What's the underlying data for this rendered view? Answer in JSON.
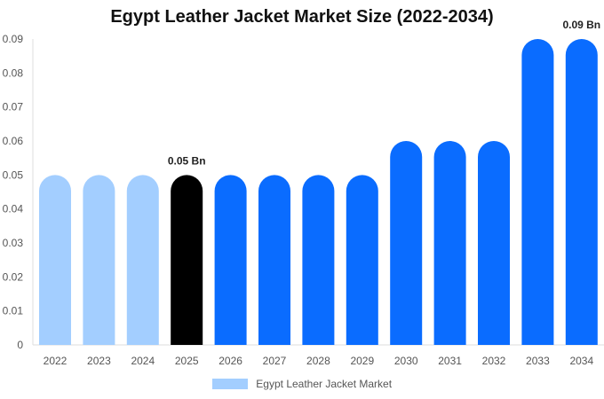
{
  "chart_data": {
    "type": "bar",
    "title": "Egypt Leather Jacket Market Size (2022-2034)",
    "xlabel": "",
    "ylabel": "",
    "categories": [
      "2022",
      "2023",
      "2024",
      "2025",
      "2026",
      "2027",
      "2028",
      "2029",
      "2030",
      "2031",
      "2032",
      "2033",
      "2034"
    ],
    "series": [
      {
        "name": "Egypt Leather Jacket Market",
        "values": [
          0.05,
          0.05,
          0.05,
          0.05,
          0.05,
          0.05,
          0.05,
          0.05,
          0.06,
          0.06,
          0.06,
          0.09,
          0.09
        ]
      }
    ],
    "ylim": [
      0,
      0.09
    ],
    "yticks": [
      "0",
      "0.01",
      "0.02",
      "0.03",
      "0.04",
      "0.05",
      "0.06",
      "0.07",
      "0.08",
      "0.09"
    ],
    "bar_colors": [
      "#a3ceff",
      "#a3ceff",
      "#a3ceff",
      "#000000",
      "#0a6cff",
      "#0a6cff",
      "#0a6cff",
      "#0a6cff",
      "#0a6cff",
      "#0a6cff",
      "#0a6cff",
      "#0a6cff",
      "#0a6cff"
    ],
    "data_labels": [
      {
        "category": "2025",
        "text": "0.05 Bn"
      },
      {
        "category": "2034",
        "text": "0.09 Bn"
      }
    ],
    "grid": false,
    "legend": "bottom-center",
    "legend_color": "#a3ceff"
  }
}
